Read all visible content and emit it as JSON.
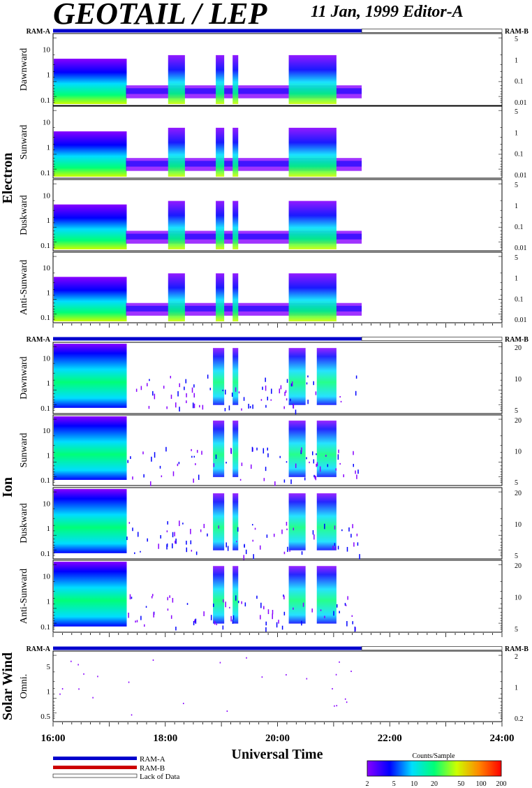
{
  "header": {
    "title": "GEOTAIL / LEP",
    "subtitle": "11 Jan, 1999   Editor-A"
  },
  "ram_labels": {
    "left": "RAM-A",
    "right": "RAM-B"
  },
  "groups": [
    {
      "label": "Electron",
      "panels": [
        {
          "label": "Dawnward",
          "left_ticks": [
            "10",
            "1",
            "0.1"
          ],
          "right_ticks": [
            "5",
            "1",
            "0.1",
            "0.01"
          ]
        },
        {
          "label": "Sunward",
          "left_ticks": [
            "10",
            "1",
            "0.1"
          ],
          "right_ticks": [
            "5",
            "1",
            "0.1",
            "0.01"
          ]
        },
        {
          "label": "Duskward",
          "left_ticks": [
            "10",
            "1",
            "0.1"
          ],
          "right_ticks": [
            "5",
            "1",
            "0.1",
            "0.01"
          ]
        },
        {
          "label": "Anti-Sunward",
          "left_ticks": [
            "10",
            "1",
            "0.1"
          ],
          "right_ticks": [
            "5",
            "1",
            "0.1",
            "0.01"
          ]
        }
      ]
    },
    {
      "label": "Ion",
      "panels": [
        {
          "label": "Dawnward",
          "left_ticks": [
            "10",
            "1",
            "0.1"
          ],
          "right_ticks": [
            "20",
            "10",
            "5"
          ]
        },
        {
          "label": "Sunward",
          "left_ticks": [
            "10",
            "1",
            "0.1"
          ],
          "right_ticks": [
            "20",
            "10",
            "5"
          ]
        },
        {
          "label": "Duskward",
          "left_ticks": [
            "10",
            "1",
            "0.1"
          ],
          "right_ticks": [
            "20",
            "10",
            "5"
          ]
        },
        {
          "label": "Anti-Sunward",
          "left_ticks": [
            "10",
            "1",
            "0.1"
          ],
          "right_ticks": [
            "20",
            "10",
            "5"
          ]
        }
      ]
    },
    {
      "label": "Solar Wind",
      "panels": [
        {
          "label": "Omni.",
          "left_ticks": [
            "5",
            "1",
            "0.5"
          ],
          "right_ticks": [
            "2",
            "1",
            "0.2"
          ]
        }
      ]
    }
  ],
  "chart_data": {
    "type": "heatmap",
    "title": "GEOTAIL / LEP",
    "xlabel": "Universal Time",
    "x_ticks": [
      "16:00",
      "18:00",
      "20:00",
      "22:00",
      "24:00"
    ],
    "x_range": [
      "16:00",
      "24:00"
    ],
    "y_scale": "log",
    "data_coverage_hours": {
      "ram_a": [
        16.0,
        21.5
      ],
      "lack_of_data": [
        21.5,
        24.0
      ]
    },
    "intervals_hours": {
      "electron_hot_plasma": [
        16.0,
        17.3
      ],
      "electron_bursts": [
        [
          18.05,
          18.35
        ],
        [
          18.9,
          19.05
        ],
        [
          19.2,
          19.3
        ],
        [
          20.2,
          21.05
        ]
      ],
      "ion_hot_plasma": [
        16.0,
        17.3
      ],
      "ion_bursts": [
        [
          18.85,
          19.05
        ],
        [
          19.2,
          19.3
        ],
        [
          20.2,
          20.5
        ],
        [
          20.7,
          21.05
        ]
      ]
    }
  },
  "legend": {
    "ram_a": "RAM-A",
    "ram_b": "RAM-B",
    "lack": "Lack of Data",
    "ram_a_color": "#0000cc",
    "ram_b_color": "#cc0000"
  },
  "colorbar": {
    "title": "Counts/Sample",
    "ticks": [
      "2",
      "5",
      "10",
      "20",
      "50",
      "100",
      "200"
    ],
    "colors": [
      "#8800ff",
      "#0000ff",
      "#00ddff",
      "#00ff77",
      "#ccff00",
      "#ff8800",
      "#ff0000"
    ]
  },
  "labels": {
    "xlabel": "Universal Time"
  }
}
